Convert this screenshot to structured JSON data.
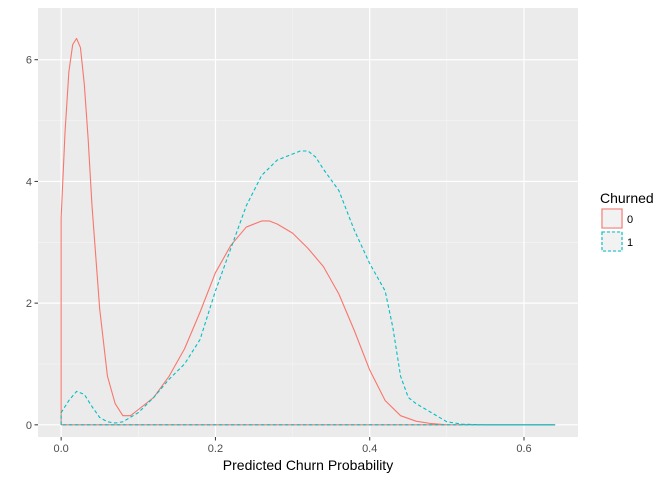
{
  "chart_data": {
    "type": "density",
    "xlabel": "Predicted Churn Probability",
    "ylabel": "",
    "xlim": [
      -0.03,
      0.67
    ],
    "ylim": [
      -0.2,
      6.85
    ],
    "x_ticks": [
      0.0,
      0.2,
      0.4,
      0.6
    ],
    "x_tick_labels": [
      "0.0",
      "0.2",
      "0.4",
      "0.6"
    ],
    "y_ticks": [
      0,
      2,
      4,
      6
    ],
    "y_tick_labels": [
      "0",
      "2",
      "4",
      "6"
    ],
    "grid": true,
    "legend": {
      "title": "Churned",
      "position": "right",
      "entries": [
        "0",
        "1"
      ]
    },
    "series": [
      {
        "name": "0",
        "color": "#F8766D",
        "linestyle": "solid",
        "x": [
          0.0,
          0.0,
          0.005,
          0.01,
          0.015,
          0.02,
          0.025,
          0.03,
          0.035,
          0.04,
          0.05,
          0.06,
          0.07,
          0.08,
          0.09,
          0.1,
          0.12,
          0.14,
          0.16,
          0.18,
          0.2,
          0.22,
          0.24,
          0.26,
          0.27,
          0.28,
          0.3,
          0.32,
          0.34,
          0.36,
          0.38,
          0.4,
          0.42,
          0.44,
          0.46,
          0.48,
          0.5,
          0.52,
          0.55,
          0.6,
          0.64,
          0.64,
          0.0
        ],
        "y": [
          0.0,
          3.4,
          4.8,
          5.8,
          6.25,
          6.35,
          6.2,
          5.6,
          4.7,
          3.6,
          1.9,
          0.8,
          0.35,
          0.15,
          0.15,
          0.25,
          0.45,
          0.8,
          1.25,
          1.85,
          2.5,
          2.95,
          3.25,
          3.35,
          3.35,
          3.3,
          3.15,
          2.9,
          2.6,
          2.15,
          1.55,
          0.9,
          0.4,
          0.15,
          0.06,
          0.02,
          0.0,
          0.0,
          0.0,
          0.0,
          0.0,
          0.0,
          0.0
        ]
      },
      {
        "name": "1",
        "color": "#00BFC4",
        "linestyle": "dashed",
        "x": [
          0.0,
          0.0,
          0.01,
          0.02,
          0.03,
          0.04,
          0.05,
          0.06,
          0.07,
          0.08,
          0.1,
          0.12,
          0.14,
          0.16,
          0.18,
          0.19,
          0.2,
          0.22,
          0.24,
          0.26,
          0.28,
          0.3,
          0.31,
          0.32,
          0.33,
          0.34,
          0.36,
          0.38,
          0.4,
          0.42,
          0.43,
          0.44,
          0.45,
          0.46,
          0.48,
          0.5,
          0.52,
          0.55,
          0.6,
          0.64,
          0.64,
          0.0
        ],
        "y": [
          0.0,
          0.2,
          0.4,
          0.55,
          0.5,
          0.3,
          0.12,
          0.05,
          0.03,
          0.05,
          0.2,
          0.45,
          0.75,
          1.0,
          1.4,
          1.8,
          2.2,
          2.9,
          3.6,
          4.1,
          4.35,
          4.45,
          4.5,
          4.5,
          4.4,
          4.2,
          3.85,
          3.2,
          2.65,
          2.2,
          1.6,
          0.8,
          0.45,
          0.35,
          0.2,
          0.05,
          0.01,
          0.0,
          0.0,
          0.0,
          0.0,
          0.0
        ]
      }
    ]
  }
}
